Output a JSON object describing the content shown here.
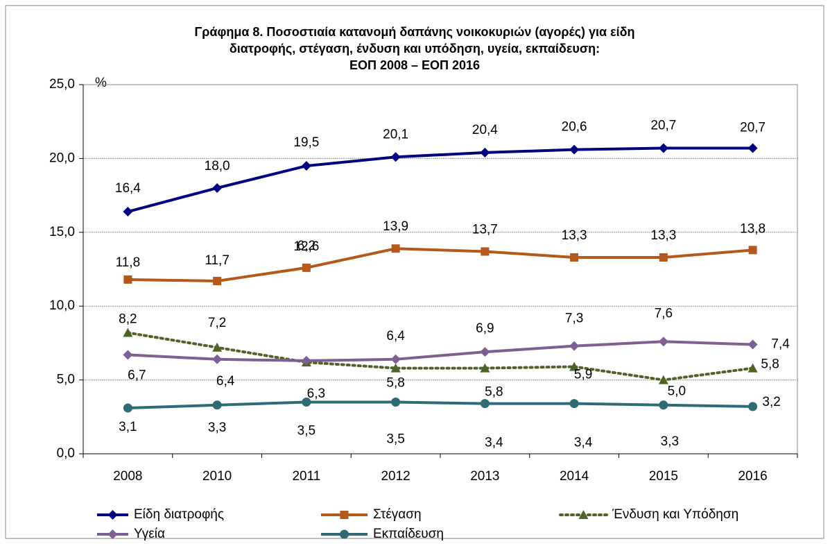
{
  "chart_data": {
    "type": "line",
    "title": [
      "Γράφημα 8. Ποσοστιαία κατανομή δαπάνης νοικοκυριών (αγορές) για είδη",
      "διατροφής, στέγαση, ένδυση και υπόδηση, υγεία, εκπαίδευση:",
      "ΕΟΠ 2008 – ΕΟΠ 2016"
    ],
    "ylabel": "%",
    "categories": [
      "2008",
      "2010",
      "2011",
      "2012",
      "2013",
      "2014",
      "2015",
      "2016"
    ],
    "ylim": [
      0,
      25
    ],
    "yticks": [
      {
        "value": 0,
        "label": "0,0"
      },
      {
        "value": 5,
        "label": "5,0"
      },
      {
        "value": 10,
        "label": "10,0"
      },
      {
        "value": 15,
        "label": "15,0"
      },
      {
        "value": 20,
        "label": "20,0"
      },
      {
        "value": 25,
        "label": "25,0"
      }
    ],
    "grid": true,
    "series": [
      {
        "name": "Είδη διατροφής",
        "color": "#000080",
        "marker": "diamond",
        "dash": "solid",
        "values": [
          16.4,
          18.0,
          19.5,
          20.1,
          20.4,
          20.6,
          20.7,
          20.7
        ],
        "value_labels": [
          "16,4",
          "18,0",
          "19,5",
          "20,1",
          "20,4",
          "20,6",
          "20,7",
          "20,7"
        ]
      },
      {
        "name": "Στέγαση",
        "color": "#b5581c",
        "marker": "square",
        "dash": "solid",
        "values": [
          11.8,
          11.7,
          12.6,
          13.9,
          13.7,
          13.3,
          13.3,
          13.8
        ],
        "value_labels": [
          "11,8",
          "11,7",
          "12,6",
          "13,9",
          "13,7",
          "13,3",
          "13,3",
          "13,8"
        ]
      },
      {
        "name": "Ένδυση και Υπόδηση",
        "color": "#4f6228",
        "marker": "triangle",
        "dash": "dotted",
        "values": [
          8.2,
          7.2,
          6.2,
          5.8,
          5.8,
          5.9,
          5.0,
          5.8
        ],
        "value_labels": [
          "8,2",
          "7,2",
          "6,2",
          "5,8",
          "5,8",
          "5,9",
          "5,0",
          "5,8"
        ]
      },
      {
        "name": "Υγεία",
        "color": "#7e5f94",
        "marker": "diamond",
        "dash": "solid",
        "values": [
          6.7,
          6.4,
          6.3,
          6.4,
          6.9,
          7.3,
          7.6,
          7.4
        ],
        "value_labels": [
          "6,7",
          "6,4",
          "6,3",
          "6,4",
          "6,9",
          "7,3",
          "7,6",
          "7,4"
        ]
      },
      {
        "name": "Εκπαίδευση",
        "color": "#2e6b75",
        "marker": "circle",
        "dash": "solid",
        "values": [
          3.1,
          3.3,
          3.5,
          3.5,
          3.4,
          3.4,
          3.3,
          3.2
        ],
        "value_labels": [
          "3,1",
          "3,3",
          "3,5",
          "3,5",
          "3,4",
          "3,4",
          "3,3",
          "3,2"
        ]
      }
    ]
  }
}
